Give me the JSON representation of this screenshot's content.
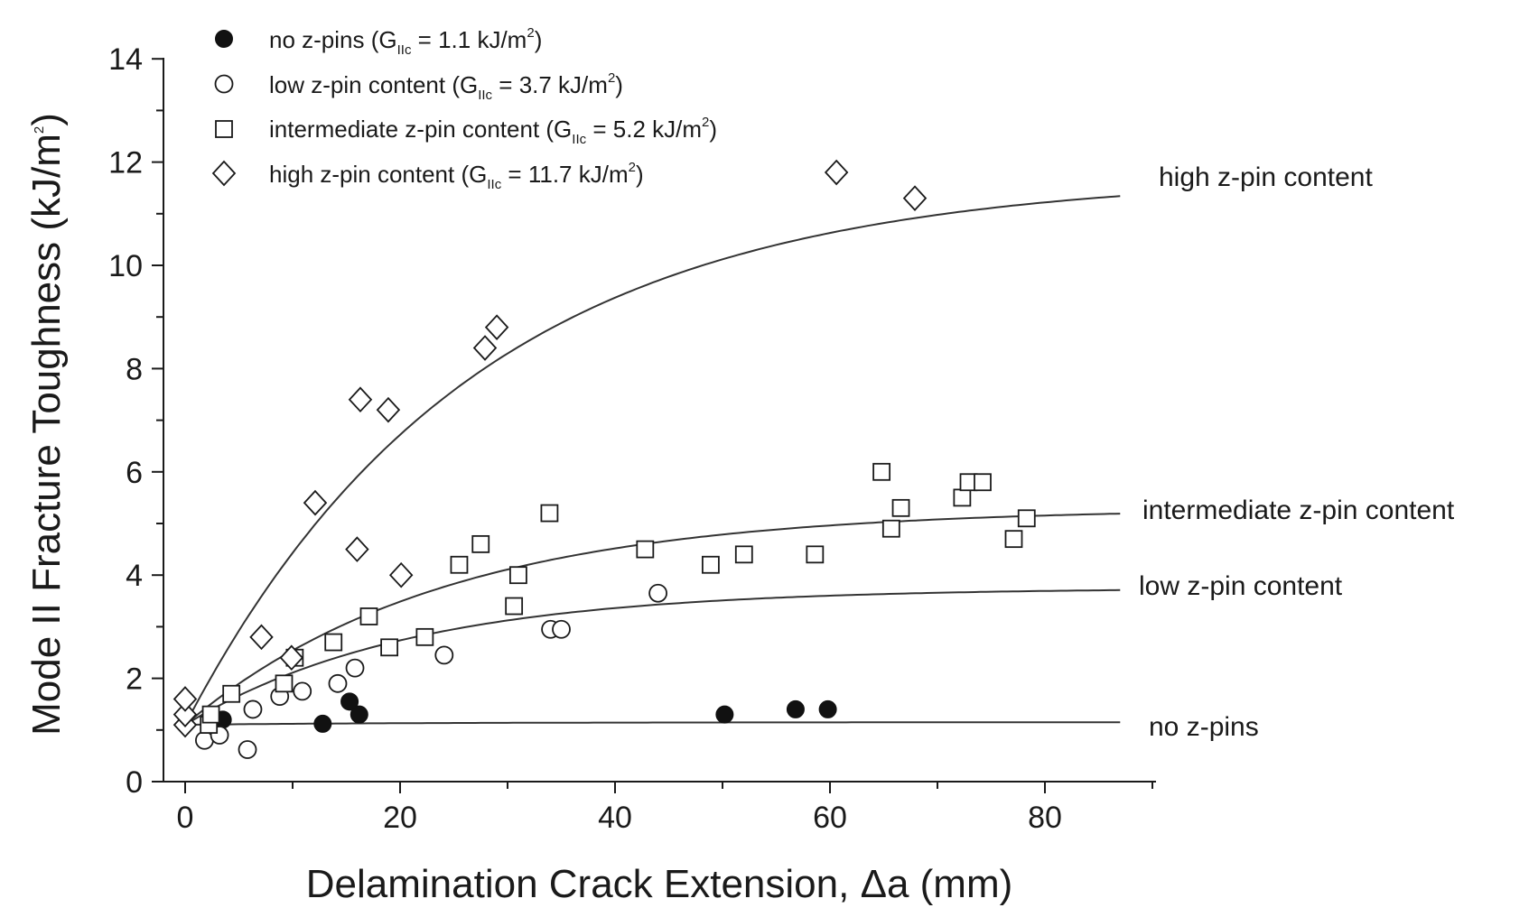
{
  "chart_data": {
    "type": "scatter",
    "title": "",
    "xlabel": "Delamination Crack Extension, Δa (mm)",
    "ylabel": "Mode II Fracture Toughness (kJ/m",
    "ylabel_sup": "2",
    "ylabel_end": ")",
    "xlim": [
      0,
      90
    ],
    "ylim": [
      0,
      14
    ],
    "x_ticks": [
      0,
      20,
      40,
      60,
      80
    ],
    "x_tick_labels": [
      "0",
      "20",
      "40",
      "60",
      "80"
    ],
    "x_minor_ticks": [
      10,
      30,
      50,
      70,
      90
    ],
    "y_ticks": [
      0,
      2,
      4,
      6,
      8,
      10,
      12,
      14
    ],
    "y_tick_labels": [
      "0",
      "2",
      "4",
      "6",
      "8",
      "10",
      "12",
      "14"
    ],
    "y_minor_ticks": [
      1,
      3,
      5,
      7,
      9,
      11,
      13
    ],
    "legend_position": "top-left",
    "series": [
      {
        "name": "no z-pins",
        "legend_prefix": "no z-pins (G",
        "legend_sub": "IIc",
        "legend_mid": " = 1.1 kJ/m",
        "legend_sup": "2",
        "legend_suffix": ")",
        "marker": "filled-circle",
        "curve_label": "no z-pins",
        "curve": {
          "start": 1.1,
          "plateau": 1.15,
          "rate": 0.05,
          "x_end": 87
        },
        "points": [
          [
            3.5,
            1.2
          ],
          [
            12.8,
            1.12
          ],
          [
            15.3,
            1.55
          ],
          [
            16.2,
            1.3
          ],
          [
            50.2,
            1.3
          ],
          [
            56.8,
            1.4
          ],
          [
            59.8,
            1.4
          ]
        ]
      },
      {
        "name": "low z-pin content",
        "legend_prefix": "low z-pin content (G",
        "legend_sub": "IIc",
        "legend_mid": " = 3.7 kJ/m",
        "legend_sup": "2",
        "legend_suffix": ")",
        "marker": "open-circle",
        "curve_label": "low z-pin content",
        "curve": {
          "start": 1.1,
          "plateau": 3.75,
          "rate": 0.048,
          "x_end": 87
        },
        "points": [
          [
            1.8,
            0.8
          ],
          [
            3.2,
            0.9
          ],
          [
            5.8,
            0.62
          ],
          [
            6.3,
            1.4
          ],
          [
            8.8,
            1.65
          ],
          [
            10.9,
            1.75
          ],
          [
            14.2,
            1.9
          ],
          [
            15.8,
            2.2
          ],
          [
            24.1,
            2.45
          ],
          [
            34.0,
            2.95
          ],
          [
            35.0,
            2.95
          ],
          [
            44.0,
            3.65
          ]
        ]
      },
      {
        "name": "intermediate z-pin content",
        "legend_prefix": "intermediate z-pin content (G",
        "legend_sub": "IIc",
        "legend_mid": " = 5.2 kJ/m",
        "legend_sup": "2",
        "legend_suffix": ")",
        "marker": "open-square",
        "curve_label": "intermediate z-pin content",
        "curve": {
          "start": 1.1,
          "plateau": 5.3,
          "rate": 0.042,
          "x_end": 87
        },
        "points": [
          [
            2.2,
            1.1
          ],
          [
            2.4,
            1.3
          ],
          [
            4.3,
            1.7
          ],
          [
            9.2,
            1.9
          ],
          [
            10.2,
            2.4
          ],
          [
            13.8,
            2.7
          ],
          [
            17.1,
            3.2
          ],
          [
            19.0,
            2.6
          ],
          [
            22.3,
            2.8
          ],
          [
            25.5,
            4.2
          ],
          [
            27.5,
            4.6
          ],
          [
            30.6,
            3.4
          ],
          [
            31.0,
            4.0
          ],
          [
            33.9,
            5.2
          ],
          [
            42.8,
            4.5
          ],
          [
            48.9,
            4.2
          ],
          [
            52.0,
            4.4
          ],
          [
            58.6,
            4.4
          ],
          [
            64.8,
            6.0
          ],
          [
            65.7,
            4.9
          ],
          [
            66.6,
            5.3
          ],
          [
            72.3,
            5.5
          ],
          [
            72.9,
            5.8
          ],
          [
            74.2,
            5.8
          ],
          [
            77.1,
            4.7
          ],
          [
            78.3,
            5.1
          ]
        ]
      },
      {
        "name": "high z-pin content",
        "legend_prefix": "high z-pin content (G",
        "legend_sub": "IIc",
        "legend_mid": " = 11.7 kJ/m",
        "legend_sup": "2",
        "legend_suffix": ")",
        "marker": "open-diamond",
        "curve_label": "high z-pin content",
        "curve": {
          "start": 1.1,
          "plateau": 11.75,
          "rate": 0.0375,
          "x_end": 87
        },
        "points": [
          [
            0.0,
            1.1
          ],
          [
            0.0,
            1.3
          ],
          [
            0.0,
            1.6
          ],
          [
            7.1,
            2.8
          ],
          [
            9.9,
            2.4
          ],
          [
            12.1,
            5.4
          ],
          [
            16.0,
            4.5
          ],
          [
            16.3,
            7.4
          ],
          [
            18.9,
            7.2
          ],
          [
            20.1,
            4.0
          ],
          [
            27.9,
            8.4
          ],
          [
            29.0,
            8.8
          ],
          [
            60.6,
            11.8
          ],
          [
            67.9,
            11.3
          ]
        ]
      }
    ]
  }
}
